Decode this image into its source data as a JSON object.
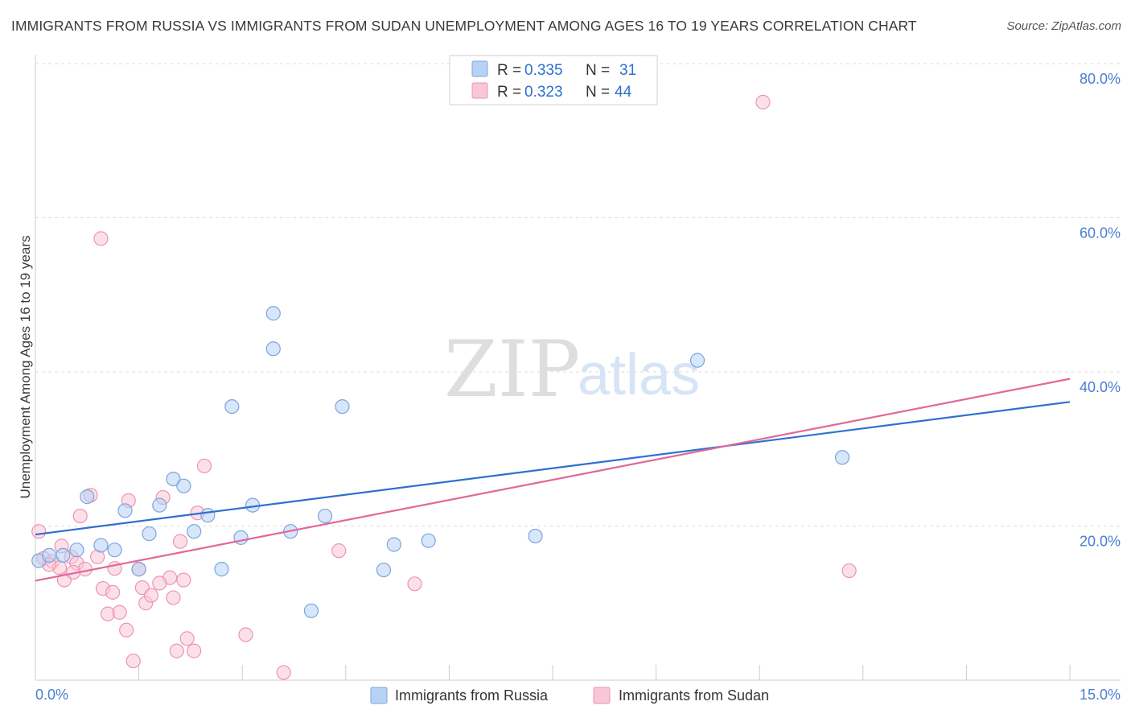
{
  "header": {
    "title": "IMMIGRANTS FROM RUSSIA VS IMMIGRANTS FROM SUDAN UNEMPLOYMENT AMONG AGES 16 TO 19 YEARS CORRELATION CHART",
    "source": "Source: ZipAtlas.com"
  },
  "watermark": {
    "zip": "ZIP",
    "atlas": "atlas"
  },
  "legend": {
    "russia": {
      "r_label": "R =",
      "r_value": "0.335",
      "n_label": "N =",
      "n_value": "31"
    },
    "sudan": {
      "r_label": "R =",
      "r_value": "0.323",
      "n_label": "N =",
      "n_value": "44"
    }
  },
  "bottom_legend": {
    "russia": "Immigrants from Russia",
    "sudan": "Immigrants from Sudan"
  },
  "colors": {
    "russia_fill": "#b8d2f5",
    "russia_stroke": "#7aa5e0",
    "russia_line": "#2f6fd1",
    "sudan_fill": "#f9c6d6",
    "sudan_stroke": "#ee93b3",
    "sudan_line": "#e0689a",
    "grid": "#dddddd",
    "axis": "#cccccc"
  },
  "chart_data": {
    "type": "scatter",
    "title": "IMMIGRANTS FROM RUSSIA VS IMMIGRANTS FROM SUDAN UNEMPLOYMENT AMONG AGES 16 TO 19 YEARS CORRELATION CHART",
    "xlabel": "",
    "ylabel": "Unemployment Among Ages 16 to 19 years",
    "xlim": [
      0,
      15
    ],
    "ylim": [
      0,
      80
    ],
    "x_tick_labels": [
      "0.0%",
      "15.0%"
    ],
    "y_ticks": [
      20,
      40,
      60,
      80
    ],
    "y_tick_labels": [
      "20.0%",
      "40.0%",
      "60.0%",
      "80.0%"
    ],
    "grid": true,
    "series": [
      {
        "name": "Immigrants from Russia",
        "R": 0.335,
        "N": 31,
        "trend": {
          "x": [
            0,
            15
          ],
          "y": [
            18.9,
            36.1
          ]
        },
        "points": [
          [
            0.05,
            15.5
          ],
          [
            0.2,
            16.2
          ],
          [
            0.4,
            16.2
          ],
          [
            0.6,
            16.9
          ],
          [
            0.75,
            23.8
          ],
          [
            0.95,
            17.5
          ],
          [
            1.15,
            16.9
          ],
          [
            1.3,
            22.0
          ],
          [
            1.5,
            14.4
          ],
          [
            1.65,
            19.0
          ],
          [
            1.8,
            22.7
          ],
          [
            2.0,
            26.1
          ],
          [
            2.15,
            25.2
          ],
          [
            2.3,
            19.3
          ],
          [
            2.5,
            21.4
          ],
          [
            2.7,
            14.4
          ],
          [
            2.85,
            35.5
          ],
          [
            2.98,
            18.5
          ],
          [
            3.15,
            22.7
          ],
          [
            3.45,
            47.6
          ],
          [
            3.45,
            43.0
          ],
          [
            3.7,
            19.3
          ],
          [
            4.0,
            9.0
          ],
          [
            4.2,
            21.3
          ],
          [
            4.45,
            35.5
          ],
          [
            5.05,
            14.3
          ],
          [
            5.2,
            17.6
          ],
          [
            5.7,
            18.1
          ],
          [
            7.25,
            18.7
          ],
          [
            9.6,
            41.5
          ],
          [
            11.7,
            28.9
          ]
        ]
      },
      {
        "name": "Immigrants from Sudan",
        "R": 0.323,
        "N": 44,
        "trend": {
          "x": [
            0,
            15
          ],
          "y": [
            12.9,
            39.1
          ]
        },
        "points": [
          [
            0.05,
            19.3
          ],
          [
            0.12,
            15.8
          ],
          [
            0.25,
            15.4
          ],
          [
            0.35,
            14.6
          ],
          [
            0.38,
            17.4
          ],
          [
            0.42,
            13.0
          ],
          [
            0.52,
            16.0
          ],
          [
            0.6,
            15.2
          ],
          [
            0.65,
            21.3
          ],
          [
            0.72,
            14.4
          ],
          [
            0.8,
            24.0
          ],
          [
            0.9,
            16.0
          ],
          [
            0.95,
            57.3
          ],
          [
            0.98,
            11.9
          ],
          [
            1.05,
            8.6
          ],
          [
            1.12,
            11.4
          ],
          [
            1.15,
            14.5
          ],
          [
            1.22,
            8.8
          ],
          [
            1.32,
            6.5
          ],
          [
            1.35,
            23.3
          ],
          [
            1.42,
            2.5
          ],
          [
            1.5,
            14.4
          ],
          [
            1.55,
            12.0
          ],
          [
            1.6,
            10.0
          ],
          [
            1.68,
            11.0
          ],
          [
            1.85,
            23.7
          ],
          [
            1.95,
            13.3
          ],
          [
            2.0,
            10.7
          ],
          [
            2.05,
            3.8
          ],
          [
            2.1,
            18.0
          ],
          [
            2.15,
            13.0
          ],
          [
            2.2,
            5.4
          ],
          [
            2.3,
            3.8
          ],
          [
            2.35,
            21.7
          ],
          [
            2.45,
            27.8
          ],
          [
            3.05,
            5.9
          ],
          [
            3.6,
            1.0
          ],
          [
            4.4,
            16.8
          ],
          [
            5.5,
            12.5
          ],
          [
            10.55,
            75.0
          ],
          [
            11.8,
            14.2
          ],
          [
            0.2,
            15.0
          ],
          [
            0.55,
            14.0
          ],
          [
            1.8,
            12.6
          ]
        ]
      }
    ]
  }
}
